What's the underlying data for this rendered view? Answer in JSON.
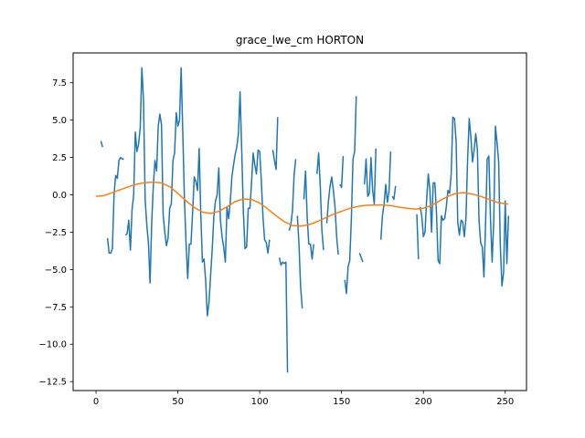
{
  "chart_data": {
    "type": "line",
    "title": "grace_lwe_cm HORTON",
    "xlabel": "",
    "ylabel": "",
    "xlim": [
      -14,
      263
    ],
    "ylim": [
      -13.1,
      9.5
    ],
    "xticks": [
      0,
      50,
      100,
      150,
      200,
      250
    ],
    "yticks": [
      7.5,
      5.0,
      2.5,
      0.0,
      -2.5,
      -5.0,
      -7.5,
      -10.0,
      -12.5
    ],
    "grid": false,
    "legend": "none",
    "series": [
      {
        "color": "#1f77b4",
        "segments": [
          [
            [
              3,
              3.6
            ],
            [
              4,
              3.2
            ]
          ],
          [
            [
              7,
              -2.9
            ],
            [
              8,
              -3.9
            ],
            [
              9,
              -3.9
            ],
            [
              10,
              -3.6
            ],
            [
              11,
              0.0
            ],
            [
              12,
              1.3
            ],
            [
              13,
              1.1
            ],
            [
              14,
              2.3
            ],
            [
              15,
              2.5
            ],
            [
              16,
              2.4
            ],
            [
              17,
              2.4
            ]
          ],
          [
            [
              18,
              -2.7
            ],
            [
              19,
              -2.6
            ],
            [
              20,
              -1.7
            ],
            [
              21,
              -3.7
            ],
            [
              22,
              -1.0
            ],
            [
              23,
              0.0
            ],
            [
              24,
              4.2
            ],
            [
              25,
              2.9
            ],
            [
              26,
              3.4
            ],
            [
              27,
              4.5
            ],
            [
              28,
              8.5
            ],
            [
              29,
              6.3
            ],
            [
              30,
              -0.3
            ],
            [
              31,
              -2.0
            ],
            [
              32,
              -3.2
            ],
            [
              33,
              -5.9
            ],
            [
              34,
              -1.9
            ],
            [
              35,
              0.6
            ],
            [
              36,
              2.3
            ],
            [
              37,
              1.6
            ],
            [
              38,
              4.6
            ],
            [
              39,
              5.4
            ],
            [
              40,
              4.7
            ],
            [
              41,
              -1.3
            ],
            [
              42,
              -2.5
            ],
            [
              43,
              -3.4
            ],
            [
              44,
              -2.9
            ],
            [
              45,
              -0.9
            ],
            [
              46,
              -0.6
            ],
            [
              47,
              2.3
            ],
            [
              48,
              2.8
            ],
            [
              49,
              5.5
            ],
            [
              50,
              4.6
            ],
            [
              51,
              5.0
            ],
            [
              52,
              8.5
            ],
            [
              53,
              4.2
            ],
            [
              54,
              -0.3
            ],
            [
              55,
              -3.2
            ],
            [
              56,
              -5.6
            ],
            [
              57,
              -3.3
            ],
            [
              58,
              -3.3
            ],
            [
              59,
              -1.2
            ],
            [
              60,
              1.2
            ],
            [
              61,
              0.9
            ],
            [
              62,
              0.3
            ],
            [
              63,
              3.1
            ],
            [
              64,
              -1.3
            ],
            [
              65,
              -4.5
            ],
            [
              66,
              -4.3
            ],
            [
              67,
              -5.8
            ],
            [
              68,
              -8.1
            ],
            [
              69,
              -7.2
            ],
            [
              70,
              -5.4
            ],
            [
              71,
              -3.6
            ],
            [
              72,
              -1.4
            ],
            [
              73,
              -0.4
            ],
            [
              74,
              0.0
            ],
            [
              75,
              1.8
            ],
            [
              76,
              -1.7
            ],
            [
              77,
              -2.8
            ],
            [
              78,
              -3.5
            ],
            [
              79,
              -4.5
            ],
            [
              80,
              -0.8
            ],
            [
              81,
              -1.6
            ],
            [
              82,
              -0.5
            ],
            [
              83,
              1.2
            ],
            [
              84,
              2.0
            ],
            [
              85,
              2.7
            ],
            [
              86,
              3.2
            ],
            [
              87,
              4.1
            ],
            [
              88,
              6.9
            ],
            [
              89,
              3.0
            ],
            [
              90,
              -1.1
            ],
            [
              91,
              -3.6
            ],
            [
              92,
              -3.5
            ],
            [
              93,
              -0.9
            ],
            [
              94,
              -0.9
            ],
            [
              95,
              0.8
            ],
            [
              96,
              2.8
            ],
            [
              97,
              2.0
            ],
            [
              98,
              1.4
            ],
            [
              99,
              3.0
            ],
            [
              100,
              2.9
            ],
            [
              101,
              0.9
            ],
            [
              102,
              -1.5
            ],
            [
              103,
              -3.0
            ],
            [
              104,
              -3.2
            ],
            [
              105,
              -3.9
            ],
            [
              106,
              -3.0
            ]
          ],
          [
            [
              108,
              3.0
            ],
            [
              109,
              2.3
            ],
            [
              110,
              1.7
            ],
            [
              111,
              5.2
            ]
          ],
          [
            [
              112,
              -4.2
            ],
            [
              113,
              -4.7
            ],
            [
              114,
              -4.5
            ],
            [
              115,
              -4.6
            ],
            [
              116,
              -4.5
            ],
            [
              117,
              -11.9
            ]
          ],
          [
            [
              118,
              -2.4
            ],
            [
              119,
              -2.0
            ],
            [
              120,
              -1.1
            ],
            [
              121,
              1.3
            ],
            [
              122,
              2.4
            ]
          ],
          [
            [
              123,
              -1.4
            ],
            [
              124,
              -3.3
            ],
            [
              125,
              -6.2
            ],
            [
              126,
              -7.6
            ]
          ],
          [
            [
              127,
              -0.3
            ],
            [
              128,
              1.6
            ],
            [
              129,
              -1.5
            ],
            [
              130,
              -3.3
            ],
            [
              131,
              -3.3
            ],
            [
              132,
              -4.3
            ],
            [
              133,
              -3.3
            ]
          ],
          [
            [
              135,
              1.4
            ],
            [
              136,
              2.8
            ],
            [
              137,
              0.6
            ],
            [
              138,
              -2.4
            ],
            [
              139,
              -3.7
            ]
          ],
          [
            [
              141,
              -1.9
            ],
            [
              142,
              -0.4
            ],
            [
              143,
              0.6
            ],
            [
              144,
              1.2
            ],
            [
              145,
              0.3
            ],
            [
              146,
              -0.8
            ],
            [
              147,
              -2.8
            ],
            [
              148,
              -4.0
            ]
          ],
          [
            [
              149,
              0.7
            ],
            [
              150,
              0.5
            ],
            [
              151,
              2.6
            ]
          ],
          [
            [
              152,
              -5.7
            ],
            [
              153,
              -6.6
            ],
            [
              154,
              -4.8
            ],
            [
              155,
              -4.4
            ],
            [
              156,
              -1.6
            ],
            [
              157,
              2.4
            ],
            [
              158,
              2.9
            ],
            [
              159,
              6.6
            ]
          ],
          [
            [
              161,
              -3.9
            ],
            [
              162,
              -4.2
            ],
            [
              163,
              -4.5
            ]
          ],
          [
            [
              164,
              0.7
            ],
            [
              165,
              2.4
            ],
            [
              166,
              -0.1
            ],
            [
              167,
              0.1
            ],
            [
              168,
              2.5
            ],
            [
              169,
              0.3
            ],
            [
              170,
              -0.6
            ],
            [
              171,
              3.1
            ]
          ],
          [
            [
              174,
              -3.0
            ],
            [
              175,
              -1.4
            ],
            [
              176,
              -0.6
            ],
            [
              177,
              0.7
            ],
            [
              178,
              -0.5
            ],
            [
              179,
              0.2
            ],
            [
              180,
              2.9
            ]
          ],
          [
            [
              181,
              -0.1
            ],
            [
              182,
              -0.3
            ],
            [
              183,
              0.6
            ]
          ],
          [
            [
              196,
              -1.3
            ],
            [
              197,
              -4.3
            ]
          ],
          [
            [
              198,
              -0.8
            ],
            [
              199,
              -1.4
            ],
            [
              200,
              -2.8
            ],
            [
              201,
              -2.5
            ],
            [
              202,
              -0.3
            ],
            [
              203,
              1.4
            ],
            [
              204,
              0.3
            ],
            [
              205,
              -2.5
            ],
            [
              206,
              0.8
            ],
            [
              207,
              0.8
            ],
            [
              208,
              -1.2
            ],
            [
              209,
              -4.4
            ],
            [
              210,
              -4.6
            ],
            [
              211,
              -1.4
            ],
            [
              212,
              -1.7
            ],
            [
              213,
              -1.6
            ],
            [
              214,
              -0.8
            ],
            [
              215,
              0.3
            ],
            [
              216,
              0.1
            ],
            [
              217,
              1.4
            ],
            [
              218,
              5.2
            ],
            [
              219,
              5.1
            ],
            [
              220,
              3.6
            ],
            [
              221,
              -1.8
            ],
            [
              222,
              -2.7
            ],
            [
              223,
              -1.7
            ],
            [
              224,
              -1.8
            ],
            [
              225,
              -2.8
            ],
            [
              226,
              -1.6
            ],
            [
              227,
              2.3
            ],
            [
              228,
              5.1
            ],
            [
              229,
              3.9
            ],
            [
              230,
              2.2
            ],
            [
              231,
              3.0
            ],
            [
              232,
              4.1
            ],
            [
              233,
              3.0
            ],
            [
              234,
              -1.7
            ],
            [
              235,
              -3.2
            ],
            [
              236,
              -3.5
            ],
            [
              237,
              -5.5
            ],
            [
              238,
              -1.9
            ],
            [
              239,
              2.4
            ],
            [
              240,
              2.6
            ],
            [
              241,
              -1.6
            ],
            [
              242,
              -4.5
            ],
            [
              243,
              -1.7
            ],
            [
              244,
              4.6
            ],
            [
              245,
              3.5
            ],
            [
              246,
              2.2
            ],
            [
              247,
              -3.4
            ],
            [
              248,
              -6.1
            ],
            [
              249,
              -5.2
            ],
            [
              250,
              -0.4
            ],
            [
              251,
              -4.6
            ],
            [
              252,
              -1.4
            ]
          ]
        ]
      },
      {
        "color": "#ff7f0e",
        "segments": [
          [
            [
              0,
              -0.1
            ],
            [
              5,
              -0.05
            ],
            [
              10,
              0.15
            ],
            [
              15,
              0.35
            ],
            [
              20,
              0.55
            ],
            [
              25,
              0.72
            ],
            [
              30,
              0.82
            ],
            [
              35,
              0.85
            ],
            [
              40,
              0.8
            ],
            [
              45,
              0.55
            ],
            [
              50,
              0.1
            ],
            [
              55,
              -0.4
            ],
            [
              60,
              -0.85
            ],
            [
              65,
              -1.15
            ],
            [
              70,
              -1.25
            ],
            [
              75,
              -1.1
            ],
            [
              80,
              -0.8
            ],
            [
              85,
              -0.45
            ],
            [
              90,
              -0.28
            ],
            [
              95,
              -0.3
            ],
            [
              100,
              -0.55
            ],
            [
              105,
              -0.95
            ],
            [
              110,
              -1.4
            ],
            [
              115,
              -1.8
            ],
            [
              120,
              -2.05
            ],
            [
              125,
              -2.1
            ],
            [
              130,
              -2.0
            ],
            [
              135,
              -1.8
            ],
            [
              140,
              -1.55
            ],
            [
              145,
              -1.3
            ],
            [
              150,
              -1.1
            ],
            [
              155,
              -0.9
            ],
            [
              160,
              -0.78
            ],
            [
              165,
              -0.7
            ],
            [
              170,
              -0.68
            ],
            [
              175,
              -0.68
            ],
            [
              180,
              -0.72
            ],
            [
              185,
              -0.82
            ],
            [
              190,
              -0.9
            ],
            [
              195,
              -0.95
            ],
            [
              200,
              -0.9
            ],
            [
              205,
              -0.7
            ],
            [
              210,
              -0.4
            ],
            [
              215,
              -0.1
            ],
            [
              220,
              0.1
            ],
            [
              225,
              0.15
            ],
            [
              230,
              0.05
            ],
            [
              235,
              -0.1
            ],
            [
              240,
              -0.3
            ],
            [
              245,
              -0.5
            ],
            [
              250,
              -0.6
            ],
            [
              252,
              -0.62
            ]
          ]
        ]
      }
    ]
  }
}
